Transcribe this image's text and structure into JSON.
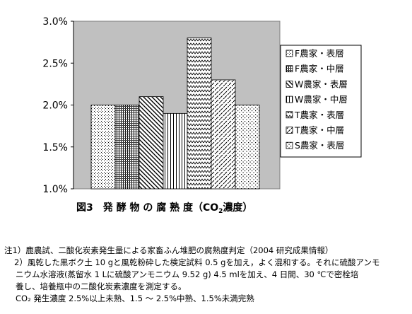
{
  "chart_data": {
    "type": "bar",
    "title": "図3　発 酵 物 の 腐 熟 度（CO",
    "title_sub": "2",
    "title_tail": "濃度）",
    "categories": [
      "F農家・表層",
      "F農家・中層",
      "W農家・表層",
      "W農家・中層",
      "T農家・表層",
      "T農家・中層",
      "S農家・表層"
    ],
    "values": [
      2.0,
      2.0,
      2.1,
      1.9,
      2.8,
      2.3,
      2.0
    ],
    "ylim": [
      1.0,
      3.0
    ],
    "yticks": [
      "1.0%",
      "1.5%",
      "2.0%",
      "2.5%",
      "3.0%"
    ],
    "ytick_values": [
      1.0,
      1.5,
      2.0,
      2.5,
      3.0
    ],
    "grid": false,
    "plot_background": "#c0c0c0",
    "legend_position": "right",
    "patterns": [
      "dots",
      "vlines",
      "diag-back",
      "vlines-wide",
      "zigzag",
      "diag-dashed",
      "dots-sparse"
    ]
  },
  "notes": [
    "注1）鹿農試、二酸化炭素発生量による家畜ふん堆肥の腐熟度判定（2004 研究成果情報）",
    "2）風乾した黒ボク土 10 gと風乾粉砕した検定試料 0.5 gを加え，よく混和する。それに硫酸アンモ",
    "ニウム水溶液(蒸留水 1 Lに硫酸アンモニウム 9.52 g) 4.5 mlを加え、4 日間、30 ℃で密栓培",
    "養し、培養瓶中の二酸化炭素濃度を測定する。",
    "CO₂ 発生濃度 2.5%以上未熟、1.5 ～ 2.5%中熟、1.5%未満完熟"
  ]
}
